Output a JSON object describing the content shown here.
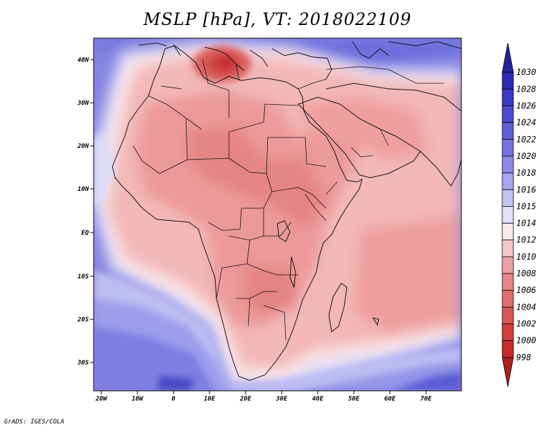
{
  "title": "MSLP [hPa], VT: 2018022109",
  "footer": "GrADS: IGES/COLA",
  "map": {
    "lat_labels": [
      "40N",
      "30N",
      "20N",
      "10N",
      "EQ",
      "10S",
      "20S",
      "30S"
    ],
    "lon_labels": [
      "20W",
      "10W",
      "0",
      "10E",
      "20E",
      "30E",
      "40E",
      "50E",
      "60E",
      "70E"
    ]
  },
  "colorbar": {
    "levels": [
      "1030",
      "1028",
      "1026",
      "1024",
      "1022",
      "1020",
      "1018",
      "1016",
      "1015",
      "1014",
      "1012",
      "1010",
      "1008",
      "1006",
      "1004",
      "1002",
      "1000",
      "998"
    ],
    "colors": [
      "#23239a",
      "#2b2bb4",
      "#3a3ac8",
      "#4b4bd2",
      "#5e5ed9",
      "#7373df",
      "#8b8be6",
      "#a6a6ee",
      "#c4c4f5",
      "#e2e2fb",
      "#fbe9e9",
      "#f5c8c8",
      "#eea3a3",
      "#e88787",
      "#e26f6f",
      "#dc5656",
      "#d63d3d",
      "#c82a2a",
      "#b01e1e"
    ]
  }
}
